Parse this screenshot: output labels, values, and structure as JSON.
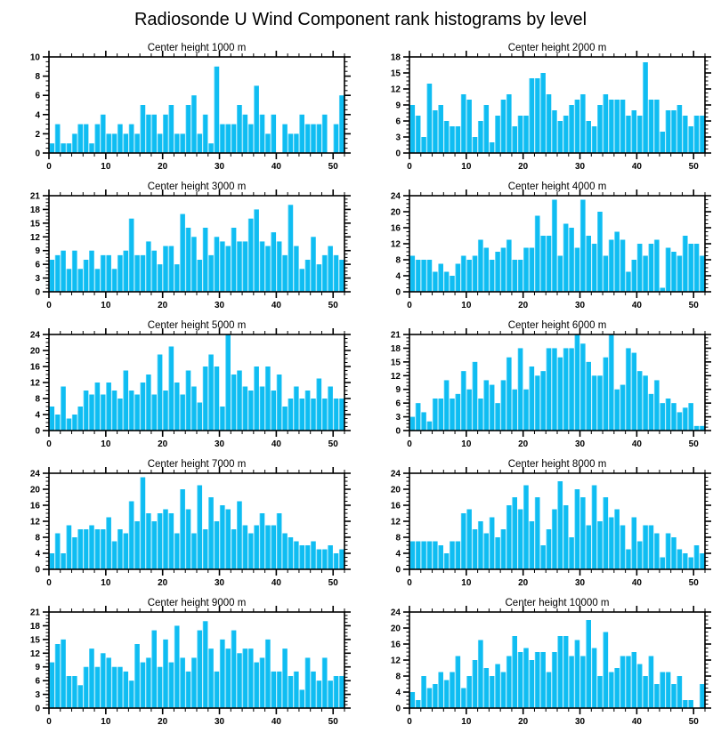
{
  "page_title": "Radiosonde U Wind Component rank histograms by level",
  "colors": {
    "bar": "#0FBDF2",
    "bar_highlight": "#7EDCF8",
    "axis": "#000000",
    "background": "#ffffff"
  },
  "chart_data": [
    {
      "type": "bar",
      "title": "Center height 1000 m",
      "xlim": [
        0,
        52
      ],
      "xticks": [
        0,
        10,
        20,
        30,
        40,
        50
      ],
      "ylim": [
        0,
        10
      ],
      "ytick_step": 2,
      "grid": false,
      "legend": "none",
      "values": [
        1,
        3,
        1,
        1,
        2,
        3,
        3,
        1,
        3,
        4,
        2,
        2,
        3,
        2,
        3,
        2,
        5,
        4,
        4,
        2,
        4,
        5,
        2,
        2,
        5,
        6,
        2,
        4,
        1,
        9,
        3,
        3,
        3,
        5,
        4,
        3,
        7,
        4,
        2,
        4,
        0,
        3,
        2,
        2,
        4,
        3,
        3,
        3,
        4,
        0,
        3,
        6
      ]
    },
    {
      "type": "bar",
      "title": "Center height 2000 m",
      "xlim": [
        0,
        52
      ],
      "xticks": [
        0,
        10,
        20,
        30,
        40,
        50
      ],
      "ylim": [
        0,
        18
      ],
      "ytick_step": 3,
      "grid": false,
      "legend": "none",
      "values": [
        9,
        7,
        3,
        13,
        8,
        9,
        6,
        5,
        5,
        11,
        10,
        3,
        6,
        9,
        2,
        7,
        10,
        11,
        5,
        7,
        7,
        14,
        14,
        15,
        11,
        8,
        6,
        7,
        9,
        10,
        11,
        6,
        5,
        9,
        11,
        10,
        10,
        10,
        7,
        8,
        7,
        17,
        10,
        10,
        4,
        8,
        8,
        9,
        7,
        5,
        7,
        7
      ]
    },
    {
      "type": "bar",
      "title": "Center height 3000 m",
      "xlim": [
        0,
        52
      ],
      "xticks": [
        0,
        10,
        20,
        30,
        40,
        50
      ],
      "ylim": [
        0,
        21
      ],
      "ytick_step": 3,
      "grid": false,
      "legend": "none",
      "values": [
        7,
        8,
        9,
        5,
        9,
        5,
        7,
        9,
        5,
        8,
        8,
        5,
        8,
        9,
        16,
        8,
        8,
        11,
        9,
        6,
        10,
        10,
        6,
        17,
        14,
        12,
        7,
        14,
        8,
        12,
        11,
        10,
        14,
        11,
        11,
        16,
        18,
        11,
        10,
        13,
        11,
        8,
        19,
        10,
        5,
        7,
        12,
        6,
        8,
        10,
        8,
        7
      ]
    },
    {
      "type": "bar",
      "title": "Center height 4000 m",
      "xlim": [
        0,
        52
      ],
      "xticks": [
        0,
        10,
        20,
        30,
        40,
        50
      ],
      "ylim": [
        0,
        24
      ],
      "ytick_step": 4,
      "grid": false,
      "legend": "none",
      "values": [
        9,
        8,
        8,
        8,
        5,
        7,
        5,
        4,
        7,
        9,
        8,
        9,
        13,
        11,
        8,
        10,
        11,
        13,
        8,
        8,
        11,
        11,
        19,
        14,
        14,
        23,
        9,
        17,
        16,
        11,
        23,
        14,
        12,
        20,
        9,
        13,
        15,
        13,
        5,
        8,
        12,
        9,
        12,
        13,
        1,
        11,
        10,
        9,
        14,
        12,
        12,
        9
      ]
    },
    {
      "type": "bar",
      "title": "Center height 5000 m",
      "xlim": [
        0,
        52
      ],
      "xticks": [
        0,
        10,
        20,
        30,
        40,
        50
      ],
      "ylim": [
        0,
        24
      ],
      "ytick_step": 4,
      "grid": false,
      "legend": "none",
      "values": [
        6,
        4,
        11,
        3,
        4,
        6,
        10,
        9,
        12,
        9,
        12,
        10,
        8,
        15,
        10,
        9,
        12,
        14,
        9,
        19,
        10,
        21,
        12,
        9,
        15,
        11,
        7,
        16,
        19,
        16,
        6,
        24,
        14,
        15,
        11,
        10,
        16,
        11,
        16,
        10,
        14,
        6,
        8,
        11,
        8,
        10,
        8,
        13,
        8,
        11,
        8,
        8
      ]
    },
    {
      "type": "bar",
      "title": "Center height 6000 m",
      "xlim": [
        0,
        52
      ],
      "xticks": [
        0,
        10,
        20,
        30,
        40,
        50
      ],
      "ylim": [
        0,
        21
      ],
      "ytick_step": 3,
      "grid": false,
      "legend": "none",
      "values": [
        3,
        6,
        4,
        2,
        7,
        7,
        11,
        7,
        8,
        13,
        9,
        15,
        7,
        11,
        10,
        6,
        11,
        16,
        9,
        18,
        9,
        14,
        12,
        13,
        18,
        18,
        16,
        18,
        18,
        21,
        19,
        15,
        12,
        12,
        16,
        21,
        9,
        10,
        18,
        17,
        13,
        12,
        8,
        11,
        6,
        7,
        6,
        4,
        5,
        6,
        1,
        1
      ]
    },
    {
      "type": "bar",
      "title": "Center height 7000 m",
      "xlim": [
        0,
        52
      ],
      "xticks": [
        0,
        10,
        20,
        30,
        40,
        50
      ],
      "ylim": [
        0,
        24
      ],
      "ytick_step": 4,
      "grid": false,
      "legend": "none",
      "values": [
        4,
        9,
        4,
        11,
        8,
        10,
        10,
        11,
        10,
        10,
        13,
        7,
        10,
        9,
        17,
        12,
        23,
        14,
        12,
        14,
        15,
        14,
        9,
        20,
        15,
        9,
        21,
        10,
        18,
        12,
        16,
        15,
        10,
        17,
        11,
        9,
        11,
        14,
        11,
        11,
        14,
        9,
        8,
        7,
        6,
        6,
        7,
        5,
        5,
        6,
        4,
        5
      ]
    },
    {
      "type": "bar",
      "title": "Center height 8000 m",
      "xlim": [
        0,
        52
      ],
      "xticks": [
        0,
        10,
        20,
        30,
        40,
        50
      ],
      "ylim": [
        0,
        24
      ],
      "ytick_step": 4,
      "grid": false,
      "legend": "none",
      "values": [
        7,
        7,
        7,
        7,
        7,
        6,
        4,
        7,
        7,
        14,
        15,
        10,
        12,
        9,
        13,
        8,
        10,
        16,
        18,
        15,
        21,
        12,
        18,
        6,
        10,
        15,
        22,
        16,
        8,
        20,
        18,
        11,
        21,
        12,
        18,
        13,
        15,
        11,
        5,
        13,
        7,
        11,
        11,
        9,
        3,
        9,
        8,
        5,
        4,
        3,
        6,
        4
      ]
    },
    {
      "type": "bar",
      "title": "Center height 9000 m",
      "xlim": [
        0,
        52
      ],
      "xticks": [
        0,
        10,
        20,
        30,
        40,
        50
      ],
      "ylim": [
        0,
        21
      ],
      "ytick_step": 3,
      "grid": false,
      "legend": "none",
      "values": [
        10,
        14,
        15,
        7,
        7,
        5,
        9,
        13,
        9,
        12,
        11,
        9,
        9,
        8,
        6,
        14,
        10,
        11,
        17,
        9,
        15,
        10,
        18,
        11,
        8,
        11,
        17,
        19,
        13,
        8,
        15,
        13,
        17,
        12,
        13,
        13,
        10,
        11,
        15,
        8,
        8,
        13,
        7,
        8,
        4,
        11,
        8,
        6,
        11,
        6,
        7,
        7
      ]
    },
    {
      "type": "bar",
      "title": "Center height 10000 m",
      "xlim": [
        0,
        52
      ],
      "xticks": [
        0,
        10,
        20,
        30,
        40,
        50
      ],
      "ylim": [
        0,
        24
      ],
      "ytick_step": 4,
      "grid": false,
      "legend": "none",
      "values": [
        4,
        2,
        8,
        5,
        6,
        9,
        7,
        9,
        13,
        5,
        8,
        12,
        17,
        10,
        8,
        11,
        9,
        13,
        18,
        14,
        15,
        12,
        14,
        14,
        9,
        14,
        18,
        18,
        13,
        17,
        13,
        22,
        15,
        8,
        19,
        9,
        10,
        13,
        13,
        14,
        11,
        8,
        13,
        6,
        9,
        9,
        6,
        8,
        2,
        2,
        0,
        6
      ]
    }
  ]
}
